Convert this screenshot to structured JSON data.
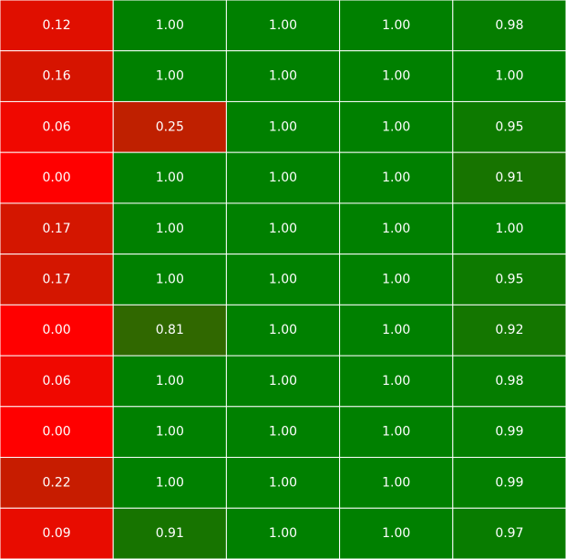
{
  "chart_data": {
    "type": "heatmap",
    "title": "",
    "xlabel": "",
    "ylabel": "",
    "grid": true,
    "legend": "none",
    "value_range": [
      0,
      1
    ],
    "colors": {
      "low": "#ff0000",
      "high": "#008000",
      "grid_line": "#ffffff",
      "text": "#ffffff"
    },
    "rows": [
      [
        0.12,
        1.0,
        1.0,
        1.0,
        0.98
      ],
      [
        0.16,
        1.0,
        1.0,
        1.0,
        1.0
      ],
      [
        0.06,
        0.25,
        1.0,
        1.0,
        0.95
      ],
      [
        0.0,
        1.0,
        1.0,
        1.0,
        0.91
      ],
      [
        0.17,
        1.0,
        1.0,
        1.0,
        1.0
      ],
      [
        0.17,
        1.0,
        1.0,
        1.0,
        0.95
      ],
      [
        0.0,
        0.81,
        1.0,
        1.0,
        0.92
      ],
      [
        0.06,
        1.0,
        1.0,
        1.0,
        0.98
      ],
      [
        0.0,
        1.0,
        1.0,
        1.0,
        0.99
      ],
      [
        0.22,
        1.0,
        1.0,
        1.0,
        0.99
      ],
      [
        0.09,
        0.91,
        1.0,
        1.0,
        0.97
      ]
    ],
    "labels": [
      [
        "0.12",
        "1.00",
        "1.00",
        "1.00",
        "0.98"
      ],
      [
        "0.16",
        "1.00",
        "1.00",
        "1.00",
        "1.00"
      ],
      [
        "0.06",
        "0.25",
        "1.00",
        "1.00",
        "0.95"
      ],
      [
        "0.00",
        "1.00",
        "1.00",
        "1.00",
        "0.91"
      ],
      [
        "0.17",
        "1.00",
        "1.00",
        "1.00",
        "1.00"
      ],
      [
        "0.17",
        "1.00",
        "1.00",
        "1.00",
        "0.95"
      ],
      [
        "0.00",
        "0.81",
        "1.00",
        "1.00",
        "0.92"
      ],
      [
        "0.06",
        "1.00",
        "1.00",
        "1.00",
        "0.98"
      ],
      [
        "0.00",
        "1.00",
        "1.00",
        "1.00",
        "0.99"
      ],
      [
        "0.22",
        "1.00",
        "1.00",
        "1.00",
        "0.99"
      ],
      [
        "0.09",
        "0.91",
        "1.00",
        "1.00",
        "0.97"
      ]
    ]
  }
}
